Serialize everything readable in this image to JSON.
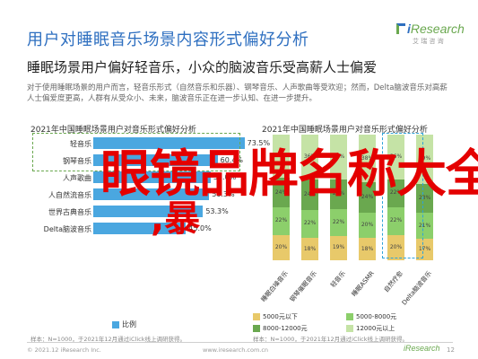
{
  "header": {
    "title": "用户对睡眠音乐场景内容形式偏好分析",
    "logo_main_prefix": "i",
    "logo_main": "Research",
    "logo_sub": "艾 瑞 咨 询"
  },
  "subtitle": "睡眠场景用户偏好轻音乐，小众的脑波音乐受高薪人士偏爱",
  "body_text": "对于使用睡眠场景的用户而言，轻音乐形式（自然音乐和乐器）、钢琴音乐、人声歌曲等受欢迎；然而，Delta脑波音乐对高薪人士偏爱度更高，人群有从受众小、未来，脑波音乐正在进一步认知、在进一步提升。",
  "left_chart_title": "2021年中国睡眠场景用户对音乐形式偏好分析",
  "right_chart_title": "2021年中国睡眠场景用户对音乐形式偏好分析",
  "chart_data": [
    {
      "type": "bar",
      "orientation": "horizontal",
      "title": "2021年中国睡眠场景用户对音乐形式偏好分析",
      "categories": [
        "轻音乐",
        "钢琴音乐",
        "人声歌曲",
        "人自然流音乐",
        "世界古典音乐",
        "Delta脑波音乐"
      ],
      "values": [
        73.5,
        60.4,
        57.0,
        56.3,
        53.3,
        45.0
      ],
      "value_labels": [
        "73.5%",
        "60.4%",
        "57.0%",
        "56.3%",
        "53.3%",
        "45.0%"
      ],
      "xlim": [
        0,
        100
      ],
      "legend": [
        "比例"
      ],
      "colors": [
        "#4aa7e0"
      ]
    },
    {
      "type": "bar",
      "orientation": "vertical",
      "stacked": true,
      "title": "2021年中国睡眠场景用户对音乐形式偏好分析",
      "categories": [
        "睡眠白噪音乐",
        "钢琴催眠音乐",
        "轻音乐",
        "睡眠ASMR",
        "自然疗愈",
        "Delta脑波音乐"
      ],
      "series": [
        {
          "name": "5000元以下",
          "values": [
            20,
            18,
            19,
            18,
            20,
            17
          ]
        },
        {
          "name": "5000-8000元",
          "values": [
            22,
            22,
            22,
            20,
            22,
            21
          ]
        },
        {
          "name": "8000-12000元",
          "values": [
            24,
            24,
            23,
            24,
            22,
            23
          ]
        },
        {
          "name": "12000元以上",
          "values": [
            34,
            36,
            36,
            38,
            36,
            39
          ]
        }
      ],
      "segment_labels": [
        [
          "20%",
          "22%",
          "24%",
          "34%"
        ],
        [
          "18%",
          "22%",
          "24%",
          "36%"
        ],
        [
          "19%",
          "22%",
          "23%",
          "36%"
        ],
        [
          "18%",
          "20%",
          "24%",
          "38%"
        ],
        [
          "20%",
          "22%",
          "22%",
          "36%"
        ],
        [
          "17%",
          "21%",
          "23%",
          "39%"
        ]
      ],
      "ylim": [
        0,
        100
      ],
      "colors": [
        "#e8c96a",
        "#8ccf6b",
        "#6aa84f",
        "#c5e3a6"
      ]
    }
  ],
  "notes": {
    "left": "样本：N=1000，于2021年12月通过iClick线上调研获得。",
    "right": "样本：N=1000，于2021年12月通过iClick线上调研获得。"
  },
  "footer": {
    "copyright": "© 2021.12 iResearch Inc.",
    "url": "www.iresearch.com.cn",
    "logo": "iResearch",
    "page": "12"
  },
  "overlay": {
    "big": "眼镜品牌名称大全",
    "small": ",暴"
  }
}
